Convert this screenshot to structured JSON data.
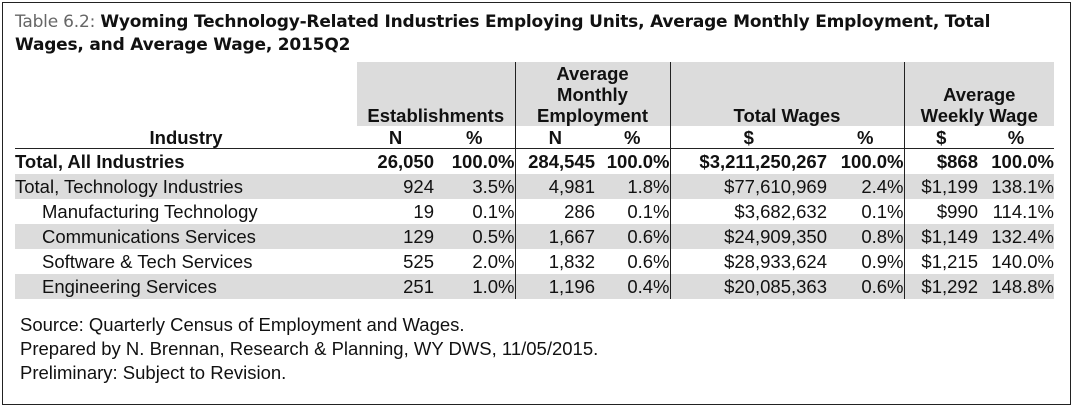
{
  "title": {
    "prefix": "Table 6.2: ",
    "main": "Wyoming Technology-Related Industries Employing Units, Average Monthly Employment, Total Wages, and Average Wage, 2015Q2"
  },
  "headers": {
    "establishments": "Establishments",
    "employment_line1": "Average",
    "employment_line2": "Monthly",
    "employment_line3": "Employment",
    "total_wages": "Total Wages",
    "avg_wage_line1": "Average",
    "avg_wage_line2": "Weekly Wage",
    "industry": "Industry",
    "n": "N",
    "pct": "%",
    "dollar": "$"
  },
  "rows": [
    {
      "industry": "Total, All Industries",
      "est_n": "26,050",
      "est_pct": "100.0%",
      "emp_n": "284,545",
      "emp_pct": "100.0%",
      "wages": "$3,211,250,267",
      "wages_pct": "100.0%",
      "weekly": "$868",
      "weekly_pct": "100.0%"
    },
    {
      "industry": "Total, Technology Industries",
      "est_n": "924",
      "est_pct": "3.5%",
      "emp_n": "4,981",
      "emp_pct": "1.8%",
      "wages": "$77,610,969",
      "wages_pct": "2.4%",
      "weekly": "$1,199",
      "weekly_pct": "138.1%"
    },
    {
      "industry": "Manufacturing Technology",
      "est_n": "19",
      "est_pct": "0.1%",
      "emp_n": "286",
      "emp_pct": "0.1%",
      "wages": "$3,682,632",
      "wages_pct": "0.1%",
      "weekly": "$990",
      "weekly_pct": "114.1%"
    },
    {
      "industry": "Communications Services",
      "est_n": "129",
      "est_pct": "0.5%",
      "emp_n": "1,667",
      "emp_pct": "0.6%",
      "wages": "$24,909,350",
      "wages_pct": "0.8%",
      "weekly": "$1,149",
      "weekly_pct": "132.4%"
    },
    {
      "industry": "Software & Tech Services",
      "est_n": "525",
      "est_pct": "2.0%",
      "emp_n": "1,832",
      "emp_pct": "0.6%",
      "wages": "$28,933,624",
      "wages_pct": "0.9%",
      "weekly": "$1,215",
      "weekly_pct": "140.0%"
    },
    {
      "industry": "Engineering Services",
      "est_n": "251",
      "est_pct": "1.0%",
      "emp_n": "1,196",
      "emp_pct": "0.4%",
      "wages": "$20,085,363",
      "wages_pct": "0.6%",
      "weekly": "$1,292",
      "weekly_pct": "148.8%"
    }
  ],
  "notes": {
    "source": "Source: Quarterly Census of Employment and Wages.",
    "prepared": "Prepared by N. Brennan, Research & Planning, WY DWS, 11/05/2015.",
    "preliminary": "Preliminary: Subject to Revision."
  }
}
